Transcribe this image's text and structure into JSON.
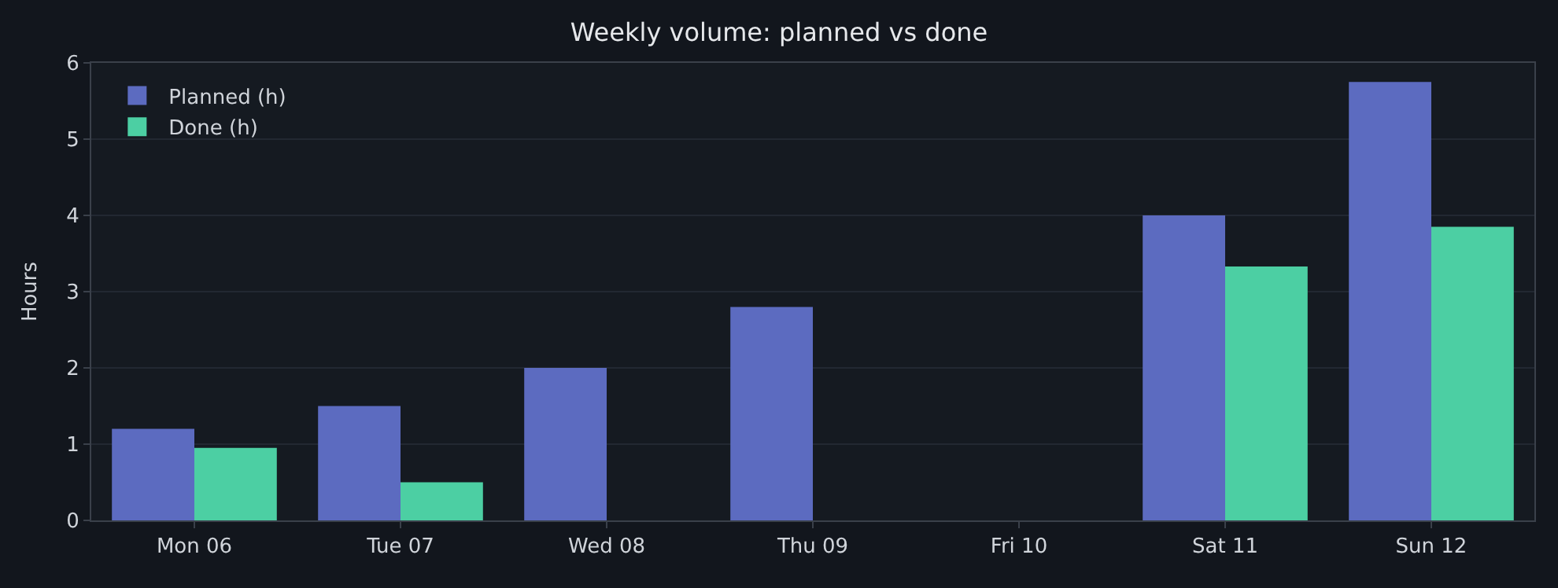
{
  "chart_data": {
    "type": "bar",
    "title": "Weekly volume: planned vs done",
    "ylabel": "Hours",
    "categories": [
      "Mon 06",
      "Tue 07",
      "Wed 08",
      "Thu 09",
      "Fri 10",
      "Sat 11",
      "Sun 12"
    ],
    "series": [
      {
        "name": "Planned (h)",
        "color": "#5c6bc0",
        "values": [
          1.2,
          1.5,
          2.0,
          2.8,
          0,
          4.0,
          5.75
        ]
      },
      {
        "name": "Done (h)",
        "color": "#4ccfa3",
        "values": [
          0.95,
          0.5,
          0,
          0,
          0,
          3.33,
          3.85
        ]
      }
    ],
    "ylim": [
      0,
      6
    ],
    "yticks": [
      0,
      1,
      2,
      3,
      4,
      5,
      6
    ],
    "grid": "y",
    "legend": "top left"
  }
}
